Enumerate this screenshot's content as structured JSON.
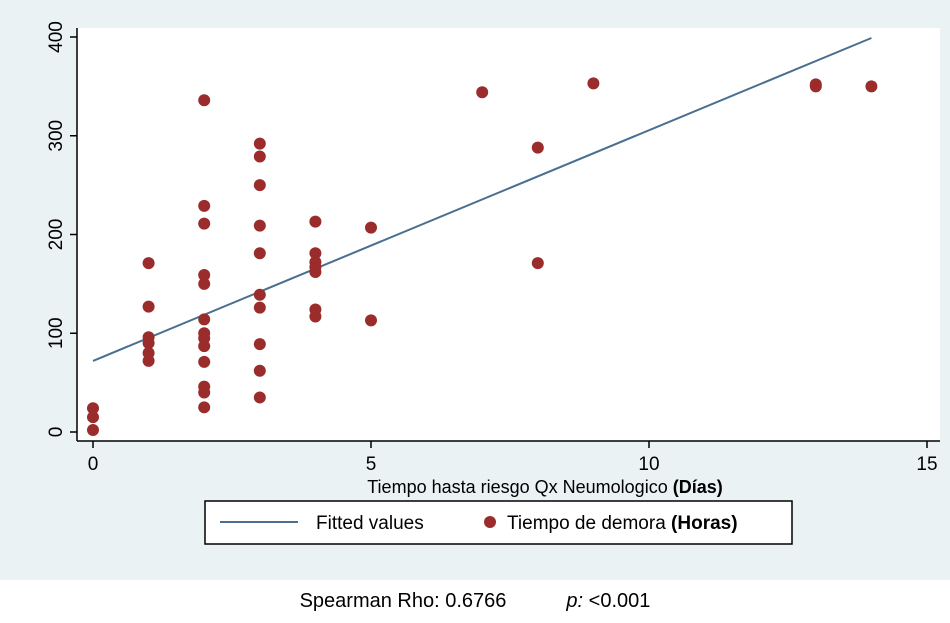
{
  "chart_data": {
    "type": "scatter",
    "title": "",
    "xlabel": "Tiempo hasta riesgo Qx Neumologico",
    "xlabel_unit": "(Días)",
    "ylabel": "",
    "xlim": [
      0,
      15
    ],
    "ylim": [
      0,
      400
    ],
    "x_ticks": [
      0,
      5,
      10,
      15
    ],
    "y_ticks": [
      0,
      100,
      200,
      300,
      400
    ],
    "grid": false,
    "legend_placement": "bottom",
    "colors": {
      "points": "#9b2c2c",
      "fit_line": "#4a6f91",
      "outer_background": "#eaf2f3",
      "plot_background": "#ffffff"
    },
    "series": [
      {
        "name": "Tiempo de demora",
        "name_unit": "(Horas)",
        "kind": "scatter",
        "points": [
          [
            0,
            2
          ],
          [
            0,
            15
          ],
          [
            0,
            24
          ],
          [
            1,
            72
          ],
          [
            1,
            80
          ],
          [
            1,
            90
          ],
          [
            1,
            96
          ],
          [
            1,
            127
          ],
          [
            1,
            171
          ],
          [
            2,
            25
          ],
          [
            2,
            40
          ],
          [
            2,
            46
          ],
          [
            2,
            71
          ],
          [
            2,
            87
          ],
          [
            2,
            95
          ],
          [
            2,
            100
          ],
          [
            2,
            114
          ],
          [
            2,
            150
          ],
          [
            2,
            159
          ],
          [
            2,
            211
          ],
          [
            2,
            229
          ],
          [
            2,
            336
          ],
          [
            3,
            35
          ],
          [
            3,
            62
          ],
          [
            3,
            89
          ],
          [
            3,
            126
          ],
          [
            3,
            139
          ],
          [
            3,
            181
          ],
          [
            3,
            209
          ],
          [
            3,
            250
          ],
          [
            3,
            279
          ],
          [
            3,
            292
          ],
          [
            4,
            117
          ],
          [
            4,
            124
          ],
          [
            4,
            162
          ],
          [
            4,
            167
          ],
          [
            4,
            172
          ],
          [
            4,
            181
          ],
          [
            4,
            213
          ],
          [
            5,
            113
          ],
          [
            5,
            207
          ],
          [
            7,
            344
          ],
          [
            8,
            171
          ],
          [
            8,
            288
          ],
          [
            9,
            353
          ],
          [
            13,
            350
          ],
          [
            13,
            352
          ],
          [
            14,
            350
          ]
        ]
      },
      {
        "name": "Fitted values",
        "kind": "line",
        "points": [
          [
            0,
            72
          ],
          [
            14,
            399
          ]
        ]
      }
    ]
  },
  "caption": {
    "spearman": "Spearman Rho: 0.6766",
    "p_label": "p:",
    "p_value": "<0.001"
  }
}
